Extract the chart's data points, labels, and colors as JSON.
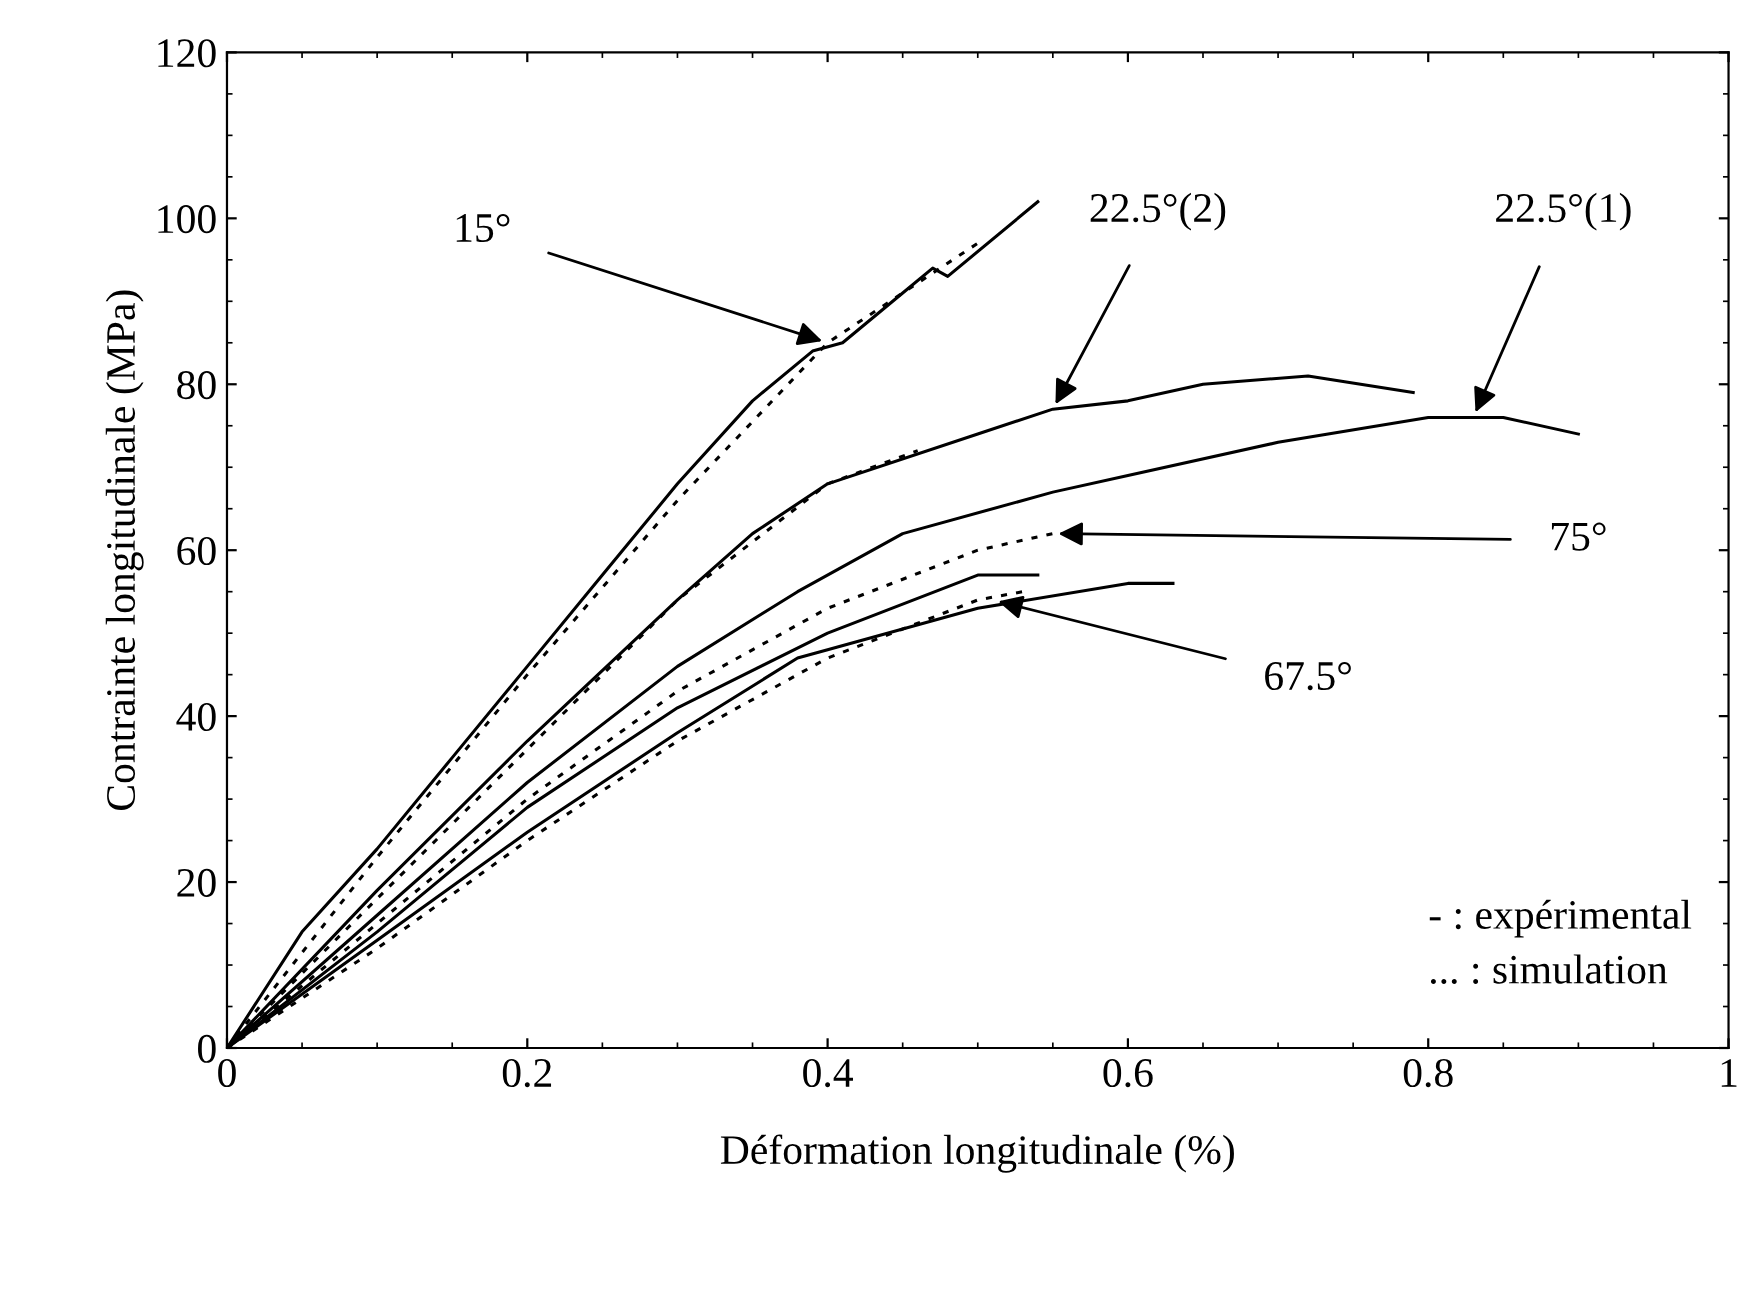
{
  "chart_data": {
    "type": "line",
    "xlabel": "Déformation longitudinale (%)",
    "ylabel": "Contrainte longitudinale (MPa)",
    "xlim": [
      0,
      1
    ],
    "ylim": [
      0,
      120
    ],
    "xticks": [
      0,
      0.2,
      0.4,
      0.6,
      0.8,
      1
    ],
    "yticks": [
      0,
      20,
      40,
      60,
      80,
      100,
      120
    ],
    "grid": false,
    "marker": "none",
    "color": "#000000",
    "series": [
      {
        "line_style": "solid",
        "x": [
          0,
          0.05,
          0.1,
          0.15,
          0.2,
          0.25,
          0.3,
          0.35,
          0.39,
          0.41,
          0.45,
          0.47,
          0.48,
          0.54
        ],
        "values": [
          0,
          14,
          24,
          35,
          46,
          57,
          68,
          78,
          84,
          85,
          91,
          94,
          93,
          102
        ]
      },
      {
        "line_style": "dotted",
        "x": [
          0,
          0.1,
          0.2,
          0.3,
          0.4,
          0.5
        ],
        "values": [
          0,
          23,
          45,
          66,
          85,
          97
        ]
      },
      {
        "line_style": "solid",
        "x": [
          0,
          0.1,
          0.2,
          0.3,
          0.35,
          0.4,
          0.5,
          0.55,
          0.6,
          0.65,
          0.72,
          0.79
        ],
        "values": [
          0,
          19,
          37,
          54,
          62,
          68,
          74,
          77,
          78,
          80,
          81,
          79
        ]
      },
      {
        "line_style": "dotted",
        "x": [
          0,
          0.1,
          0.2,
          0.3,
          0.4,
          0.46
        ],
        "values": [
          0,
          18,
          36,
          54,
          68,
          72
        ]
      },
      {
        "line_style": "solid",
        "x": [
          0,
          0.1,
          0.2,
          0.3,
          0.38,
          0.45,
          0.55,
          0.6,
          0.7,
          0.8,
          0.85,
          0.9
        ],
        "values": [
          0,
          16,
          32,
          46,
          55,
          62,
          67,
          69,
          73,
          76,
          76,
          74
        ]
      },
      {
        "line_style": "solid",
        "x": [
          0,
          0.1,
          0.2,
          0.3,
          0.4,
          0.5,
          0.54
        ],
        "values": [
          0,
          14,
          29,
          41,
          50,
          57,
          57
        ]
      },
      {
        "line_style": "dotted",
        "x": [
          0,
          0.1,
          0.2,
          0.3,
          0.4,
          0.5,
          0.55
        ],
        "values": [
          0,
          15,
          30,
          43,
          53,
          60,
          62
        ]
      },
      {
        "line_style": "solid",
        "x": [
          0,
          0.1,
          0.2,
          0.3,
          0.38,
          0.4,
          0.5,
          0.6,
          0.63
        ],
        "values": [
          0,
          13,
          26,
          38,
          47,
          48,
          53,
          56,
          56
        ]
      },
      {
        "line_style": "dotted",
        "x": [
          0,
          0.1,
          0.2,
          0.3,
          0.4,
          0.5,
          0.53
        ],
        "values": [
          0,
          12,
          25,
          37,
          47,
          54,
          55
        ]
      }
    ],
    "annotations": [
      {
        "text": "15°",
        "x": 0.4,
        "y": 85
      },
      {
        "text": "22.5°(2)",
        "x": 0.55,
        "y": 77
      },
      {
        "text": "22.5°(1)",
        "x": 0.83,
        "y": 76
      },
      {
        "text": "75°",
        "x": 0.55,
        "y": 62
      },
      {
        "text": "67.5°",
        "x": 0.51,
        "y": 54
      },
      "- : expérimental",
      "... : simulation"
    ]
  }
}
